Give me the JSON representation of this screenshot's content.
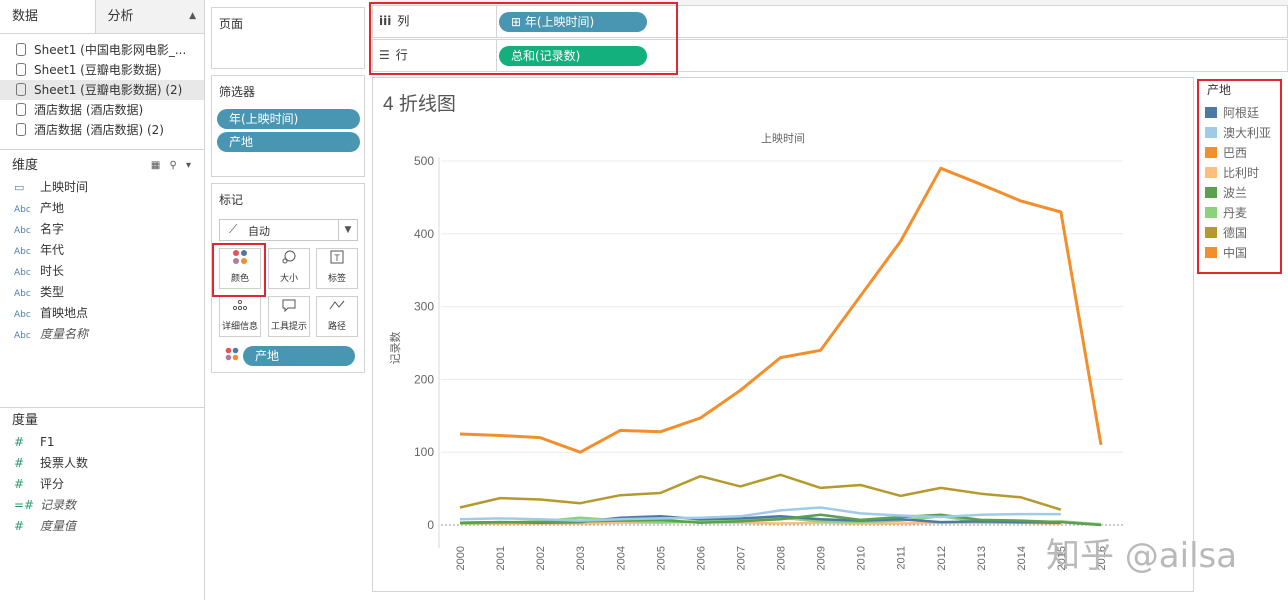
{
  "data_pane": {
    "tabs": [
      {
        "label": "数据"
      },
      {
        "label": "分析"
      }
    ],
    "datasources": [
      {
        "label": "Sheet1 (中国电影网电影_..."
      },
      {
        "label": "Sheet1 (豆瓣电影数据)"
      },
      {
        "label": "Sheet1 (豆瓣电影数据) (2)"
      },
      {
        "label": "酒店数据 (酒店数据)"
      },
      {
        "label": "酒店数据 (酒店数据) (2)"
      }
    ],
    "dimensions_title": "维度",
    "dimensions": [
      {
        "type": "cal",
        "label": "上映时间"
      },
      {
        "type": "Abc",
        "label": "产地"
      },
      {
        "type": "Abc",
        "label": "名字"
      },
      {
        "type": "Abc",
        "label": "年代"
      },
      {
        "type": "Abc",
        "label": "时长"
      },
      {
        "type": "Abc",
        "label": "类型"
      },
      {
        "type": "Abc",
        "label": "首映地点"
      },
      {
        "type": "Abc",
        "label": "度量名称"
      }
    ],
    "measures_title": "度量",
    "measures": [
      {
        "type": "#",
        "label": "F1"
      },
      {
        "type": "#",
        "label": "投票人数"
      },
      {
        "type": "#",
        "label": "评分"
      },
      {
        "type": "=#",
        "label": "记录数"
      },
      {
        "type": "#",
        "label": "度量值"
      }
    ]
  },
  "cards": {
    "pages_title": "页面",
    "filters_title": "筛选器",
    "filters": [
      {
        "label": "年(上映时间)"
      },
      {
        "label": "产地"
      }
    ],
    "marks_title": "标记",
    "mark_type": "自动",
    "mark_buttons": [
      {
        "label": "颜色",
        "icon": "color-dots-icon"
      },
      {
        "label": "大小",
        "icon": "size-icon"
      },
      {
        "label": "标签",
        "icon": "label-icon"
      },
      {
        "label": "详细信息",
        "icon": "detail-icon"
      },
      {
        "label": "工具提示",
        "icon": "tooltip-icon"
      },
      {
        "label": "路径",
        "icon": "path-icon"
      }
    ],
    "color_pill": "产地"
  },
  "shelves": {
    "columns_label": "列",
    "columns_pill": "⊞ 年(上映时间)",
    "rows_label": "行",
    "rows_pill": "总和(记录数)"
  },
  "view": {
    "title": "4 折线图",
    "x_header": "上映时间",
    "y_axis_label": "记录数"
  },
  "legend": {
    "title": "产地",
    "items": [
      {
        "label": "阿根廷",
        "color": "#4e79a7"
      },
      {
        "label": "澳大利亚",
        "color": "#a0cbe8"
      },
      {
        "label": "巴西",
        "color": "#f28e2b"
      },
      {
        "label": "比利时",
        "color": "#ffbe7d"
      },
      {
        "label": "波兰",
        "color": "#59a14f"
      },
      {
        "label": "丹麦",
        "color": "#8cd17d"
      },
      {
        "label": "德国",
        "color": "#b6992d"
      },
      {
        "label": "中国",
        "color": "#f28e2b"
      }
    ]
  },
  "watermark": "知乎 @ailsa",
  "chart_data": {
    "type": "line",
    "title": "",
    "xlabel": "上映时间",
    "ylabel": "记录数",
    "x": [
      "2000",
      "2001",
      "2002",
      "2003",
      "2004",
      "2005",
      "2006",
      "2007",
      "2008",
      "2009",
      "2010",
      "2011",
      "2012",
      "2013",
      "2014",
      "2015",
      "2016"
    ],
    "ylim": [
      0,
      500
    ],
    "yticks": [
      0,
      100,
      200,
      300,
      400,
      500
    ],
    "grid": true,
    "series": [
      {
        "color": "#f28e2b",
        "values": [
          125,
          123,
          120,
          100,
          130,
          128,
          147,
          185,
          230,
          240,
          315,
          390,
          490,
          468,
          445,
          430,
          110
        ]
      },
      {
        "color": "#b6992d",
        "values": [
          24,
          37,
          35,
          30,
          41,
          44,
          67,
          53,
          69,
          51,
          55,
          40,
          51,
          43,
          38,
          21,
          null
        ]
      },
      {
        "color": "#a0cbe8",
        "values": [
          8,
          9,
          8,
          6,
          8,
          9,
          10,
          12,
          20,
          24,
          16,
          13,
          11,
          14,
          15,
          15,
          null
        ]
      },
      {
        "color": "#59a14f",
        "values": [
          3,
          4,
          4,
          5,
          6,
          7,
          3,
          5,
          8,
          14,
          7,
          11,
          14,
          7,
          6,
          4,
          0
        ]
      },
      {
        "color": "#4e79a7",
        "values": [
          3,
          4,
          3,
          4,
          10,
          12,
          8,
          9,
          12,
          8,
          6,
          8,
          4,
          5,
          4,
          3,
          null
        ]
      },
      {
        "color": "#8cd17d",
        "values": [
          2,
          3,
          5,
          10,
          6,
          4,
          5,
          6,
          10,
          5,
          4,
          6,
          12,
          4,
          3,
          5,
          1
        ]
      },
      {
        "color": "#ffbe7d",
        "values": [
          2,
          2,
          2,
          2,
          3,
          3,
          4,
          3,
          2,
          3,
          2,
          2,
          3,
          3,
          3,
          2,
          null
        ]
      }
    ]
  }
}
